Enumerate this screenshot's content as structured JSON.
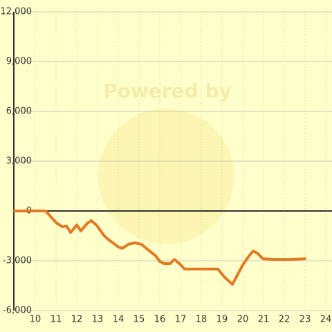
{
  "chart_data": {
    "type": "line",
    "watermark": "Powered by",
    "x": [
      9.0,
      10.0,
      10.5,
      11.0,
      11.3,
      11.5,
      11.7,
      12.0,
      12.2,
      12.5,
      12.7,
      12.97,
      13.3,
      13.5,
      13.7,
      14.0,
      14.2,
      14.5,
      14.8,
      15.1,
      15.4,
      15.8,
      16.0,
      16.2,
      16.5,
      16.7,
      16.97,
      17.2,
      18.0,
      18.8,
      19.1,
      19.5,
      19.7,
      20.0,
      20.3,
      20.5,
      20.7,
      20.97,
      21.5,
      22.3,
      23.0
    ],
    "series": [
      {
        "color": "#e07b24",
        "values": [
          0,
          0,
          0,
          -700,
          -950,
          -900,
          -1300,
          -850,
          -1200,
          -750,
          -580,
          -880,
          -1460,
          -1700,
          -1880,
          -2170,
          -2250,
          -2000,
          -1920,
          -2000,
          -2300,
          -2700,
          -3040,
          -3170,
          -3170,
          -2920,
          -3200,
          -3500,
          -3500,
          -3500,
          -3960,
          -4420,
          -3960,
          -3250,
          -2710,
          -2420,
          -2540,
          -2880,
          -2920,
          -2920,
          -2880
        ]
      }
    ],
    "xlim": [
      9,
      24.3
    ],
    "xticks": [
      10,
      11,
      12,
      13,
      14,
      15,
      16,
      17,
      18,
      19,
      20,
      21,
      22,
      23,
      24
    ],
    "ylim": [
      -6000,
      12000
    ],
    "yticks": [
      {
        "value": -6000,
        "label": "-6,000"
      },
      {
        "value": -3000,
        "label": "-3,000"
      },
      0,
      {
        "value": 3000,
        "label": "3,000"
      },
      {
        "value": 6000,
        "label": "6,000"
      },
      {
        "value": 9000,
        "label": "9,000"
      },
      {
        "value": 12000,
        "label": "12,000"
      }
    ],
    "grid": true
  }
}
